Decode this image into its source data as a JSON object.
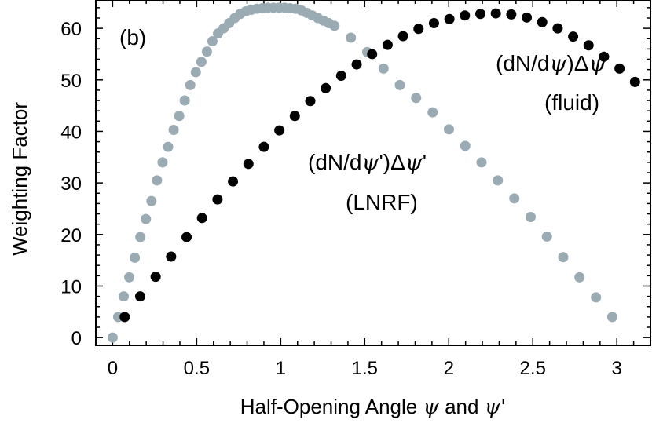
{
  "chart_data": {
    "type": "scatter",
    "panel_label": "(b)",
    "xlabel": "Half-Opening Angle ψ and ψ'",
    "xlabel_parts": {
      "pre": "Half-Opening Angle ",
      "sym1": "ψ",
      "mid": " and ",
      "sym2": "ψ'"
    },
    "ylabel": "Weighting Factor",
    "xlim": [
      -0.1,
      3.2
    ],
    "ylim": [
      -1.5,
      65.5
    ],
    "x_ticks": [
      0,
      0.5,
      1,
      1.5,
      2,
      2.5,
      3
    ],
    "x_tick_labels": [
      "0",
      "0.5",
      "1",
      "1.5",
      "2",
      "2.5",
      "3"
    ],
    "y_ticks": [
      0,
      10,
      20,
      30,
      40,
      50,
      60
    ],
    "y_tick_labels": [
      "0",
      "10",
      "20",
      "30",
      "40",
      "50",
      "60"
    ],
    "grid": false,
    "annotations": {
      "fluid_formula": {
        "a": "(dN/d",
        "b": "ψ",
        "c": ")Δ",
        "d": "ψ"
      },
      "fluid_label": "(fluid)",
      "lnrf_formula": {
        "a": "(dN/d",
        "b": "ψ",
        "c": "')Δ",
        "d": "ψ",
        "e": "'"
      },
      "lnrf_label": "(LNRF)"
    },
    "series": [
      {
        "name": "LNRF",
        "color": "#9aabb3",
        "x": [
          0.0,
          0.033,
          0.066,
          0.099,
          0.132,
          0.165,
          0.198,
          0.231,
          0.264,
          0.297,
          0.33,
          0.363,
          0.396,
          0.429,
          0.462,
          0.495,
          0.528,
          0.561,
          0.594,
          0.627,
          0.66,
          0.693,
          0.726,
          0.759,
          0.792,
          0.825,
          0.858,
          0.891,
          0.924,
          0.957,
          0.99,
          1.023,
          1.056,
          1.089,
          1.122,
          1.155,
          1.188,
          1.221,
          1.254,
          1.287,
          1.32,
          1.418,
          1.515,
          1.612,
          1.709,
          1.806,
          1.904,
          2.001,
          2.098,
          2.195,
          2.292,
          2.39,
          2.487,
          2.584,
          2.681,
          2.778,
          2.876,
          2.973
        ],
        "y": [
          0.0,
          4.0,
          8.0,
          11.7,
          15.5,
          19.5,
          23.0,
          26.5,
          30.5,
          34.0,
          37.0,
          40.3,
          43.0,
          46.0,
          49.0,
          51.5,
          53.5,
          55.5,
          57.5,
          59.0,
          60.0,
          61.0,
          62.0,
          62.8,
          63.3,
          63.6,
          63.8,
          63.9,
          64.0,
          64.0,
          64.0,
          64.0,
          63.9,
          63.8,
          63.5,
          63.0,
          62.5,
          62.0,
          61.5,
          61.0,
          60.5,
          58.2,
          55.4,
          52.2,
          49.0,
          46.5,
          43.7,
          40.4,
          37.2,
          34.0,
          30.5,
          27.0,
          23.4,
          19.6,
          15.6,
          11.7,
          7.8,
          4.0
        ]
      },
      {
        "name": "fluid",
        "color": "#000000",
        "x": [
          0.072,
          0.164,
          0.256,
          0.348,
          0.44,
          0.532,
          0.624,
          0.716,
          0.808,
          0.9,
          0.992,
          1.084,
          1.176,
          1.268,
          1.36,
          1.452,
          1.544,
          1.636,
          1.728,
          1.82,
          1.912,
          2.004,
          2.096,
          2.188,
          2.28,
          2.372,
          2.464,
          2.556,
          2.648,
          2.74,
          2.832,
          2.924,
          3.016,
          3.108
        ],
        "y": [
          4.0,
          8.0,
          11.8,
          15.7,
          19.5,
          23.2,
          26.8,
          30.3,
          33.7,
          37.0,
          40.2,
          43.0,
          45.9,
          48.4,
          50.8,
          53.0,
          55.0,
          56.8,
          58.5,
          59.9,
          61.0,
          61.8,
          62.5,
          62.8,
          62.9,
          62.7,
          62.1,
          61.2,
          60.0,
          58.4,
          56.7,
          54.5,
          52.2,
          49.6
        ]
      }
    ]
  }
}
